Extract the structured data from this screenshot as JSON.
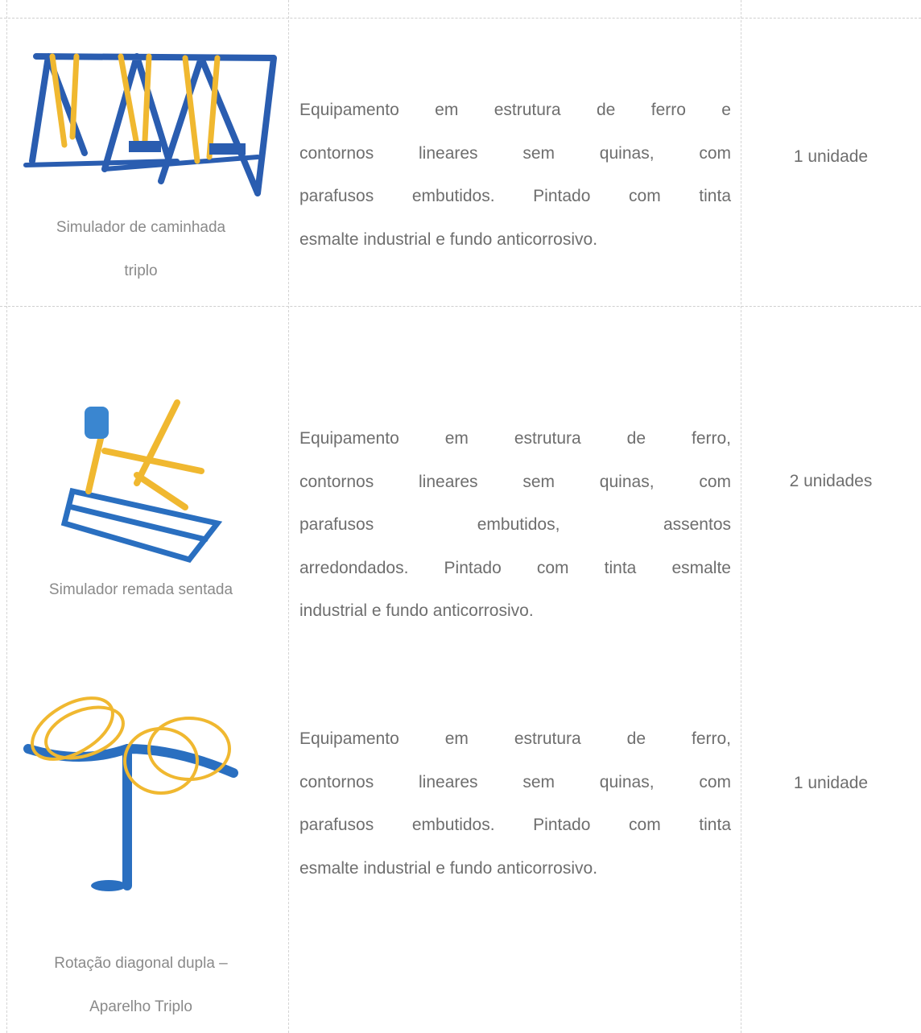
{
  "table": {
    "rows": [
      {
        "caption": [
          "Simulador de caminhada",
          "triplo"
        ],
        "description": [
          "Equipamento em estrutura de ferro e",
          "contornos lineares sem quinas, com",
          "parafusos embutidos. Pintado com tinta",
          "esmalte industrial e fundo anticorrosivo."
        ],
        "quantity": "1 unidade"
      },
      {
        "caption": [
          "Simulador remada sentada"
        ],
        "description": [
          "Equipamento em estrutura de ferro,",
          "contornos lineares sem quinas, com",
          "parafusos embutidos, assentos",
          "arredondados. Pintado com tinta esmalte",
          "industrial e fundo anticorrosivo."
        ],
        "quantity": "2 unidades"
      },
      {
        "caption": [
          "Rotação diagonal dupla –",
          "Aparelho Triplo"
        ],
        "description": [
          "Equipamento em estrutura de ferro,",
          "contornos lineares sem quinas, com",
          "parafusos embutidos. Pintado com tinta",
          "esmalte industrial e fundo anticorrosivo."
        ],
        "quantity": "1 unidade"
      }
    ]
  }
}
